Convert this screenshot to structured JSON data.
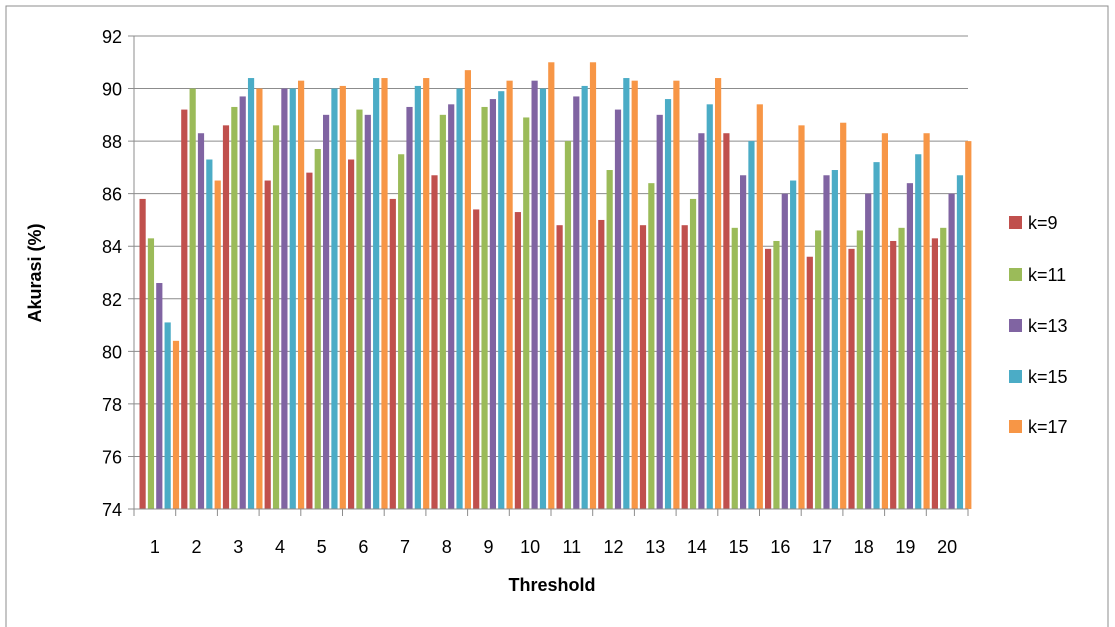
{
  "chart_data": {
    "type": "bar",
    "title": "",
    "xlabel": "Threshold",
    "ylabel": "Akurasi (%)",
    "ylim": [
      74,
      92
    ],
    "yticks": [
      74,
      76,
      78,
      80,
      82,
      84,
      86,
      88,
      90,
      92
    ],
    "grid": true,
    "legend_position": "right",
    "categories": [
      "1",
      "2",
      "3",
      "4",
      "5",
      "6",
      "7",
      "8",
      "9",
      "10",
      "11",
      "12",
      "13",
      "14",
      "15",
      "16",
      "17",
      "18",
      "19",
      "20"
    ],
    "series": [
      {
        "name": "k=9",
        "color": "#C0504D",
        "values": [
          85.8,
          89.2,
          88.6,
          86.5,
          86.8,
          87.3,
          85.8,
          86.7,
          85.4,
          85.3,
          84.8,
          85.0,
          84.8,
          84.8,
          88.3,
          83.9,
          83.6,
          83.9,
          84.2,
          84.3
        ]
      },
      {
        "name": "k=11",
        "color": "#9BBB59",
        "values": [
          84.3,
          90.0,
          89.3,
          88.6,
          87.7,
          89.2,
          87.5,
          89.0,
          89.3,
          88.9,
          88.0,
          86.9,
          86.4,
          85.8,
          84.7,
          84.2,
          84.6,
          84.6,
          84.7,
          84.7
        ]
      },
      {
        "name": "k=13",
        "color": "#8064A2",
        "values": [
          82.6,
          88.3,
          89.7,
          90.0,
          89.0,
          89.0,
          89.3,
          89.4,
          89.6,
          90.3,
          89.7,
          89.2,
          89.0,
          88.3,
          86.7,
          86.0,
          86.7,
          86.0,
          86.4,
          86.0
        ]
      },
      {
        "name": "k=15",
        "color": "#4BACC6",
        "values": [
          81.1,
          87.3,
          90.4,
          90.0,
          90.0,
          90.4,
          90.1,
          90.0,
          89.9,
          90.0,
          90.1,
          90.4,
          89.6,
          89.4,
          88.0,
          86.5,
          86.9,
          87.2,
          87.5,
          86.7
        ]
      },
      {
        "name": "k=17",
        "color": "#F79646",
        "values": [
          80.4,
          86.5,
          90.0,
          90.3,
          90.1,
          90.4,
          90.4,
          90.7,
          90.3,
          91.0,
          91.0,
          90.3,
          90.3,
          90.4,
          89.4,
          88.6,
          88.7,
          88.3,
          88.3,
          88.0
        ]
      }
    ]
  }
}
